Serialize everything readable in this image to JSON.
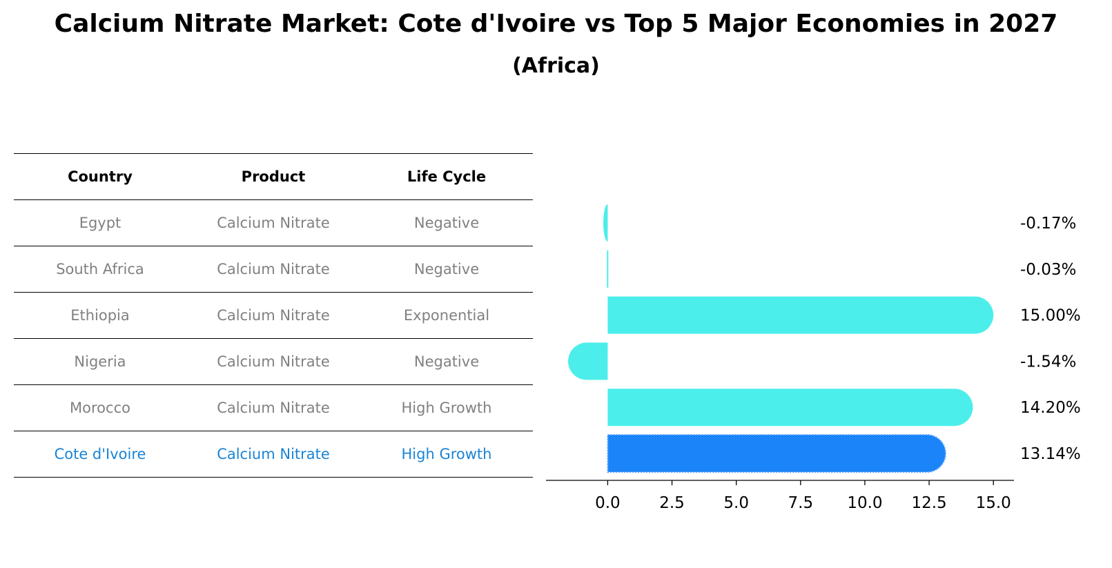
{
  "title": "Calcium Nitrate Market: Cote d'Ivoire vs Top 5 Major Economies in 2027",
  "subtitle": "(Africa)",
  "table": {
    "headers": [
      "Country",
      "Product",
      "Life Cycle"
    ],
    "rows": [
      [
        "Egypt",
        "Calcium Nitrate",
        "Negative"
      ],
      [
        "South Africa",
        "Calcium Nitrate",
        "Negative"
      ],
      [
        "Ethiopia",
        "Calcium Nitrate",
        "Exponential"
      ],
      [
        "Nigeria",
        "Calcium Nitrate",
        "Negative"
      ],
      [
        "Morocco",
        "Calcium Nitrate",
        "High Growth"
      ],
      [
        "Cote d'Ivoire",
        "Calcium Nitrate",
        "High Growth"
      ]
    ]
  },
  "chart_data": {
    "type": "bar",
    "orientation": "horizontal",
    "categories": [
      "Egypt",
      "South Africa",
      "Ethiopia",
      "Nigeria",
      "Morocco",
      "Cote d'Ivoire"
    ],
    "values": [
      -0.17,
      -0.03,
      15.0,
      -1.54,
      14.2,
      13.14
    ],
    "value_labels": [
      "-0.17%",
      "-0.03%",
      "15.00%",
      "-1.54%",
      "14.20%",
      "13.14%"
    ],
    "highlight_index": 5,
    "xlim": [
      -2.4,
      15.8
    ],
    "xticks": [
      0.0,
      2.5,
      5.0,
      7.5,
      10.0,
      12.5,
      15.0
    ],
    "xtick_labels": [
      "0.0",
      "2.5",
      "5.0",
      "7.5",
      "10.0",
      "12.5",
      "15.0"
    ],
    "colors": {
      "default": "#4beeea",
      "highlight": "#1a84f8"
    }
  }
}
